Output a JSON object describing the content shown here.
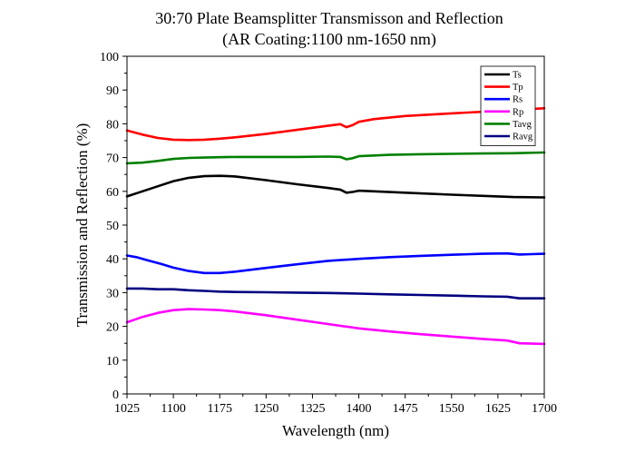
{
  "chart_data": {
    "type": "line",
    "title": "30:70 Plate Beamsplitter Transmisson and Reflection",
    "subtitle": "(AR Coating:1100 nm-1650 nm)",
    "xlabel": "Wavelength (nm)",
    "ylabel": "Transmission and Reflection (%)",
    "xlim": [
      1025,
      1700
    ],
    "ylim": [
      0,
      100
    ],
    "xticks": [
      1025,
      1100,
      1175,
      1250,
      1325,
      1400,
      1475,
      1550,
      1625,
      1700
    ],
    "yticks": [
      0,
      10,
      20,
      30,
      40,
      50,
      60,
      70,
      80,
      90,
      100
    ],
    "grid": false,
    "legend_position": "top-right",
    "series": [
      {
        "name": "Ts",
        "color": "#000000",
        "x": [
          1025,
          1050,
          1075,
          1100,
          1125,
          1150,
          1175,
          1200,
          1250,
          1300,
          1350,
          1370,
          1380,
          1390,
          1400,
          1425,
          1475,
          1550,
          1625,
          1650,
          1700
        ],
        "y": [
          58.5,
          60.0,
          61.5,
          63.0,
          64.0,
          64.5,
          64.6,
          64.4,
          63.3,
          62.1,
          61.0,
          60.5,
          59.6,
          59.8,
          60.2,
          60.0,
          59.6,
          59.0,
          58.5,
          58.3,
          58.2
        ]
      },
      {
        "name": "Tp",
        "color": "#ff0000",
        "x": [
          1025,
          1050,
          1075,
          1100,
          1125,
          1150,
          1175,
          1200,
          1250,
          1300,
          1350,
          1370,
          1380,
          1390,
          1400,
          1425,
          1475,
          1550,
          1625,
          1650,
          1700
        ],
        "y": [
          78.0,
          76.8,
          75.8,
          75.3,
          75.2,
          75.3,
          75.6,
          76.0,
          77.0,
          78.2,
          79.4,
          79.9,
          79.0,
          79.6,
          80.6,
          81.4,
          82.3,
          83.1,
          83.8,
          84.1,
          84.6
        ]
      },
      {
        "name": "Rs",
        "color": "#0000ff",
        "x": [
          1025,
          1040,
          1060,
          1080,
          1100,
          1125,
          1150,
          1175,
          1200,
          1250,
          1300,
          1350,
          1400,
          1450,
          1500,
          1550,
          1600,
          1640,
          1660,
          1680,
          1700
        ],
        "y": [
          41.0,
          40.5,
          39.5,
          38.5,
          37.4,
          36.4,
          35.8,
          35.8,
          36.2,
          37.3,
          38.4,
          39.4,
          40.0,
          40.5,
          40.9,
          41.2,
          41.5,
          41.6,
          41.3,
          41.4,
          41.5
        ]
      },
      {
        "name": "Rp",
        "color": "#ff00ff",
        "x": [
          1025,
          1050,
          1075,
          1100,
          1125,
          1150,
          1175,
          1200,
          1250,
          1300,
          1350,
          1400,
          1450,
          1500,
          1550,
          1600,
          1640,
          1660,
          1680,
          1700
        ],
        "y": [
          21.2,
          22.8,
          24.0,
          24.8,
          25.1,
          25.0,
          24.8,
          24.4,
          23.3,
          22.0,
          20.7,
          19.4,
          18.5,
          17.7,
          17.0,
          16.3,
          15.8,
          15.0,
          14.9,
          14.8
        ]
      },
      {
        "name": "Tavg",
        "color": "#008000",
        "x": [
          1025,
          1050,
          1075,
          1100,
          1125,
          1150,
          1175,
          1200,
          1250,
          1300,
          1350,
          1370,
          1380,
          1390,
          1400,
          1450,
          1500,
          1550,
          1600,
          1650,
          1700
        ],
        "y": [
          68.3,
          68.5,
          69.0,
          69.6,
          69.9,
          70.0,
          70.1,
          70.2,
          70.2,
          70.2,
          70.3,
          70.2,
          69.5,
          69.8,
          70.4,
          70.8,
          71.0,
          71.1,
          71.2,
          71.3,
          71.5
        ]
      },
      {
        "name": "Ravg",
        "color": "#000080",
        "x": [
          1025,
          1050,
          1075,
          1100,
          1125,
          1150,
          1175,
          1200,
          1250,
          1300,
          1350,
          1400,
          1450,
          1500,
          1550,
          1600,
          1640,
          1660,
          1680,
          1700
        ],
        "y": [
          31.2,
          31.2,
          31.0,
          31.0,
          30.7,
          30.5,
          30.3,
          30.2,
          30.1,
          30.0,
          29.9,
          29.7,
          29.5,
          29.3,
          29.1,
          28.9,
          28.8,
          28.3,
          28.3,
          28.3
        ]
      }
    ]
  }
}
